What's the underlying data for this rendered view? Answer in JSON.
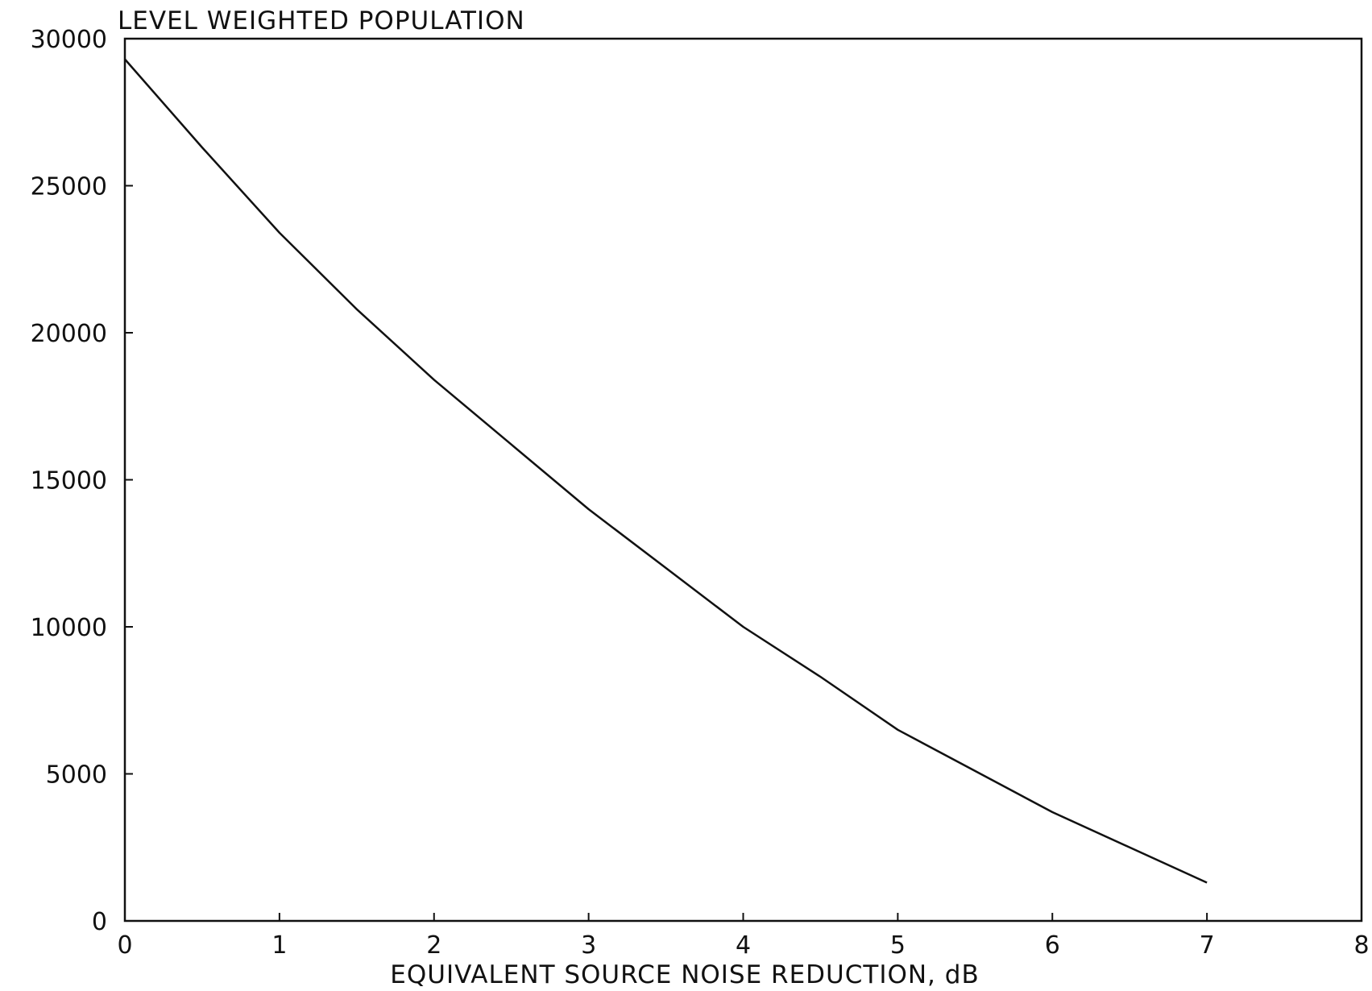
{
  "chart_data": {
    "type": "line",
    "title": "",
    "ylabel": "LEVEL WEIGHTED POPULATION",
    "xlabel": "EQUIVALENT SOURCE NOISE REDUCTION, dB",
    "xlim": [
      0,
      8
    ],
    "ylim": [
      0,
      30000
    ],
    "x_ticks": [
      "0",
      "1",
      "2",
      "3",
      "4",
      "5",
      "6",
      "7",
      "8"
    ],
    "y_ticks": [
      "30000",
      "25000",
      "20000",
      "15000",
      "10000",
      "5000",
      "0"
    ],
    "grid": false,
    "series": [
      {
        "x": [
          0,
          0.5,
          1,
          1.5,
          2,
          2.5,
          3,
          3.5,
          4,
          4.5,
          5,
          5.5,
          6,
          6.5,
          7
        ],
        "y": [
          29300,
          26300,
          23400,
          20800,
          18400,
          16200,
          14000,
          12000,
          10000,
          8300,
          6500,
          5100,
          3700,
          2500,
          1300
        ]
      }
    ],
    "colors": {
      "line": "#111111",
      "frame": "#111111",
      "background": "#ffffff"
    }
  }
}
